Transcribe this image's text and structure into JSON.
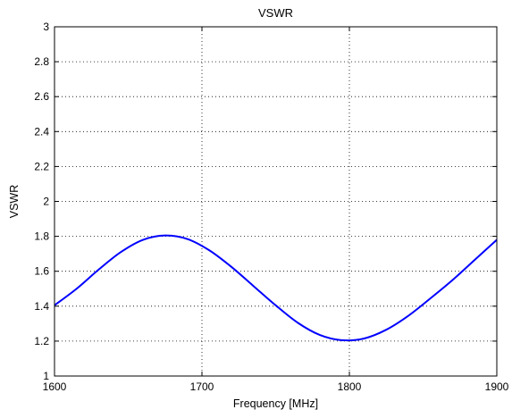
{
  "chart_data": {
    "type": "line",
    "title": "VSWR",
    "xlabel": "Frequency [MHz]",
    "ylabel": "VSWR",
    "xlim": [
      1600,
      1900
    ],
    "ylim": [
      1,
      3
    ],
    "xticks": [
      "1600",
      "1700",
      "1800",
      "1900"
    ],
    "yticks": [
      "1",
      "1.2",
      "1.4",
      "1.6",
      "1.8",
      "2",
      "2.2",
      "2.4",
      "2.6",
      "2.8",
      "3"
    ],
    "grid": true,
    "series": [
      {
        "color": "#0000ff",
        "x": [
          1600,
          1615,
          1630,
          1645,
          1660,
          1675,
          1690,
          1705,
          1720,
          1735,
          1750,
          1765,
          1780,
          1795,
          1810,
          1825,
          1840,
          1855,
          1870,
          1885,
          1900
        ],
        "y": [
          1.405,
          1.5,
          1.61,
          1.71,
          1.78,
          1.805,
          1.785,
          1.72,
          1.625,
          1.515,
          1.405,
          1.305,
          1.235,
          1.205,
          1.215,
          1.265,
          1.345,
          1.445,
          1.55,
          1.665,
          1.78
        ]
      }
    ]
  }
}
